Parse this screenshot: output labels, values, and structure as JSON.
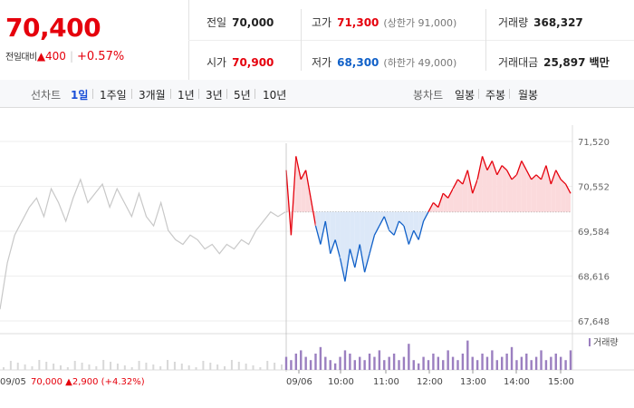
{
  "quote": {
    "price": "70,400",
    "change_label": "전일대비",
    "change_value": "▲400",
    "change_pct": "+0.57%",
    "prev_close": {
      "label": "전일",
      "value": "70,000"
    },
    "open": {
      "label": "시가",
      "value": "70,900"
    },
    "high": {
      "label": "고가",
      "value": "71,300",
      "sub": "(상한가 91,000)"
    },
    "low": {
      "label": "저가",
      "value": "68,300",
      "sub": "(하한가 49,000)"
    },
    "volume": {
      "label": "거래량",
      "value": "368,327"
    },
    "amount": {
      "label": "거래대금",
      "value": "25,897 백만"
    }
  },
  "tabs": {
    "line_title": "선차트",
    "line": [
      "1일",
      "1주일",
      "3개월",
      "1년",
      "3년",
      "5년",
      "10년"
    ],
    "selected": "1일",
    "candle_title": "봉차트",
    "candle": [
      "일봉",
      "주봉",
      "월봉"
    ]
  },
  "colors": {
    "up": "#e5000c",
    "down": "#1060c8",
    "prev": "#c8c8c8"
  },
  "chart_data": {
    "type": "line",
    "y_ticks": [
      "71,520",
      "70,552",
      "69,584",
      "68,616",
      "67,648"
    ],
    "ylim": [
      67648,
      71520
    ],
    "baseline": 70000,
    "x_ticks": [
      "09/05",
      "09/06",
      "10:00",
      "11:00",
      "12:00",
      "13:00",
      "14:00",
      "15:00"
    ],
    "prev_day": {
      "label": "09/05",
      "close": "70,000",
      "change": "▲2,900",
      "pct": "(+4.32%)",
      "values": [
        67900,
        68900,
        69500,
        69800,
        70100,
        70300,
        69900,
        70500,
        70200,
        69800,
        70300,
        70700,
        70200,
        70400,
        70600,
        70100,
        70500,
        70200,
        69900,
        70400,
        69900,
        69700,
        70200,
        69600,
        69400,
        69300,
        69500,
        69400,
        69200,
        69300,
        69100,
        69300,
        69200,
        69400,
        69300,
        69600,
        69800,
        70000,
        69900,
        70000
      ]
    },
    "today": {
      "label": "09/06",
      "values": [
        70900,
        69500,
        71200,
        70700,
        70900,
        70300,
        69700,
        69300,
        69800,
        69100,
        69400,
        69000,
        68500,
        69200,
        68800,
        69300,
        68700,
        69100,
        69500,
        69700,
        69900,
        69600,
        69500,
        69800,
        69700,
        69300,
        69600,
        69400,
        69800,
        70000,
        70200,
        70100,
        70400,
        70300,
        70500,
        70700,
        70600,
        70900,
        70400,
        70700,
        71200,
        70900,
        71100,
        70800,
        71000,
        70900,
        70700,
        70800,
        71100,
        70900,
        70700,
        70800,
        70700,
        71000,
        70600,
        70900,
        70700,
        70600,
        70400
      ],
      "volume": [
        4,
        3,
        5,
        6,
        4,
        3,
        5,
        7,
        4,
        3,
        2,
        4,
        6,
        5,
        3,
        4,
        3,
        5,
        4,
        6,
        3,
        4,
        5,
        3,
        4,
        8,
        3,
        2,
        4,
        3,
        5,
        4,
        3,
        6,
        4,
        3,
        5,
        9,
        4,
        3,
        5,
        4,
        6,
        3,
        4,
        5,
        7,
        3,
        4,
        5,
        3,
        4,
        6,
        3,
        4,
        5,
        4,
        3,
        6
      ]
    },
    "volume_legend": "거래량"
  }
}
